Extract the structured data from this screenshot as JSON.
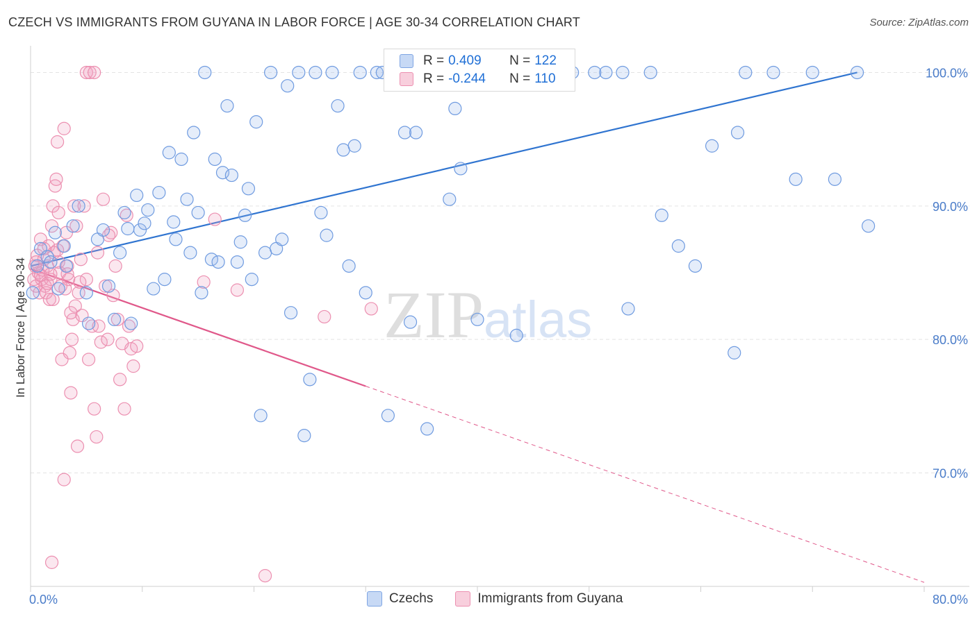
{
  "header": {
    "title": "CZECH VS IMMIGRANTS FROM GUYANA IN LABOR FORCE | AGE 30-34 CORRELATION CHART",
    "source": "Source: ZipAtlas.com"
  },
  "watermark": {
    "zip": "ZIP",
    "atlas": "atlas"
  },
  "legend_top": {
    "czechs": {
      "r_label": "R =",
      "r_value": "0.409",
      "n_label": "N =",
      "n_value": "122"
    },
    "guyana": {
      "r_label": "R =",
      "r_value": "-0.244",
      "n_label": "N =",
      "n_value": "110"
    }
  },
  "legend_bottom": {
    "czechs": "Czechs",
    "guyana": "Immigrants from Guyana"
  },
  "colors": {
    "czechs": "#6f9be0",
    "czechs_line": "#2f74d0",
    "guyana": "#ec8fb0",
    "guyana_line": "#e0588a",
    "axis_label": "#4a7cc9"
  },
  "chart_data": {
    "type": "scatter",
    "title": "CZECH VS IMMIGRANTS FROM GUYANA IN LABOR FORCE | AGE 30-34 CORRELATION CHART",
    "xlabel": "",
    "ylabel": "In Labor Force | Age 30-34",
    "xlim": [
      0,
      80
    ],
    "ylim": [
      61.5,
      102
    ],
    "x_tick_labels": [
      "0.0%",
      "80.0%"
    ],
    "y_ticks": [
      70,
      80,
      90,
      100
    ],
    "y_tick_labels": [
      "70.0%",
      "80.0%",
      "90.0%",
      "100.0%"
    ],
    "series": [
      {
        "name": "Czechs",
        "R": 0.409,
        "N": 122,
        "trend": {
          "x": [
            0,
            74
          ],
          "y": [
            85.5,
            100.0
          ]
        },
        "points": [
          [
            0.2,
            83.5
          ],
          [
            0.6,
            85.5
          ],
          [
            0.9,
            86.8
          ],
          [
            1.5,
            86.2
          ],
          [
            1.8,
            85.8
          ],
          [
            2.2,
            88.0
          ],
          [
            2.5,
            83.8
          ],
          [
            3.0,
            87.0
          ],
          [
            3.2,
            85.5
          ],
          [
            3.8,
            88.5
          ],
          [
            4.3,
            90.0
          ],
          [
            5.0,
            83.5
          ],
          [
            5.2,
            81.2
          ],
          [
            6.0,
            87.5
          ],
          [
            6.5,
            88.2
          ],
          [
            7.0,
            84.0
          ],
          [
            7.5,
            81.5
          ],
          [
            8.0,
            86.5
          ],
          [
            8.4,
            89.5
          ],
          [
            8.7,
            88.3
          ],
          [
            9.0,
            81.2
          ],
          [
            9.5,
            90.8
          ],
          [
            9.8,
            88.2
          ],
          [
            10.2,
            88.7
          ],
          [
            10.5,
            89.7
          ],
          [
            11.0,
            83.8
          ],
          [
            11.5,
            91.0
          ],
          [
            12.0,
            84.5
          ],
          [
            12.4,
            94.0
          ],
          [
            12.8,
            88.8
          ],
          [
            13.0,
            87.5
          ],
          [
            13.5,
            93.5
          ],
          [
            14.0,
            90.5
          ],
          [
            14.3,
            86.5
          ],
          [
            14.6,
            95.5
          ],
          [
            15.0,
            89.5
          ],
          [
            15.3,
            83.5
          ],
          [
            15.6,
            100.0
          ],
          [
            16.2,
            86.0
          ],
          [
            16.5,
            93.5
          ],
          [
            16.8,
            85.8
          ],
          [
            17.2,
            92.5
          ],
          [
            17.6,
            97.5
          ],
          [
            18.0,
            92.3
          ],
          [
            18.5,
            85.8
          ],
          [
            18.8,
            87.3
          ],
          [
            19.2,
            89.3
          ],
          [
            19.5,
            91.3
          ],
          [
            19.8,
            84.5
          ],
          [
            20.2,
            96.3
          ],
          [
            20.6,
            74.3
          ],
          [
            21.0,
            86.5
          ],
          [
            21.5,
            100.0
          ],
          [
            22.0,
            86.8
          ],
          [
            22.5,
            87.5
          ],
          [
            23.0,
            99.0
          ],
          [
            23.3,
            82.0
          ],
          [
            24.0,
            100.0
          ],
          [
            24.5,
            72.8
          ],
          [
            25.0,
            77.0
          ],
          [
            25.5,
            100.0
          ],
          [
            26.0,
            89.5
          ],
          [
            26.5,
            87.8
          ],
          [
            27.0,
            100.0
          ],
          [
            27.5,
            97.5
          ],
          [
            28.0,
            94.2
          ],
          [
            28.5,
            85.5
          ],
          [
            29.0,
            94.5
          ],
          [
            29.5,
            100.0
          ],
          [
            30.0,
            83.5
          ],
          [
            31.0,
            100.0
          ],
          [
            31.5,
            100.0
          ],
          [
            32.0,
            74.3
          ],
          [
            33.0,
            100.0
          ],
          [
            33.5,
            95.5
          ],
          [
            34.0,
            81.3
          ],
          [
            34.5,
            95.5
          ],
          [
            35.5,
            73.3
          ],
          [
            36.0,
            100.0
          ],
          [
            36.8,
            100.0
          ],
          [
            37.5,
            90.5
          ],
          [
            38.0,
            97.3
          ],
          [
            38.5,
            92.8
          ],
          [
            40.0,
            81.5
          ],
          [
            41.5,
            100.0
          ],
          [
            43.5,
            80.3
          ],
          [
            44.0,
            100.0
          ],
          [
            45.0,
            100.0
          ],
          [
            47.0,
            100.0
          ],
          [
            48.5,
            100.0
          ],
          [
            50.5,
            100.0
          ],
          [
            51.5,
            100.0
          ],
          [
            53.0,
            100.0
          ],
          [
            53.5,
            82.3
          ],
          [
            55.5,
            100.0
          ],
          [
            56.5,
            89.3
          ],
          [
            58.0,
            87.0
          ],
          [
            59.5,
            85.5
          ],
          [
            61.0,
            94.5
          ],
          [
            63.0,
            79.0
          ],
          [
            63.3,
            95.5
          ],
          [
            64.0,
            100.0
          ],
          [
            66.5,
            100.0
          ],
          [
            68.5,
            92.0
          ],
          [
            70.0,
            100.0
          ],
          [
            72.0,
            92.0
          ],
          [
            74.0,
            100.0
          ],
          [
            75.0,
            88.5
          ]
        ]
      },
      {
        "name": "Immigrants from Guyana",
        "R": -0.244,
        "N": 110,
        "trend": {
          "x": [
            0,
            30
          ],
          "y": [
            85.3,
            76.5
          ]
        },
        "trend_extension": {
          "x": [
            30,
            80
          ],
          "y": [
            76.5,
            61.8
          ]
        },
        "points": [
          [
            0.3,
            84.5
          ],
          [
            0.4,
            85.5
          ],
          [
            0.5,
            84.0
          ],
          [
            0.6,
            86.3
          ],
          [
            0.7,
            85.0
          ],
          [
            0.8,
            83.5
          ],
          [
            0.9,
            87.5
          ],
          [
            1.0,
            84.5
          ],
          [
            1.1,
            85.2
          ],
          [
            1.2,
            86.0
          ],
          [
            1.3,
            84.0
          ],
          [
            1.4,
            83.5
          ],
          [
            1.5,
            85.5
          ],
          [
            1.6,
            87.0
          ],
          [
            1.7,
            83.0
          ],
          [
            1.8,
            84.5
          ],
          [
            1.9,
            88.5
          ],
          [
            2.0,
            90.0
          ],
          [
            2.1,
            86.5
          ],
          [
            2.2,
            91.5
          ],
          [
            2.3,
            92.0
          ],
          [
            2.4,
            94.8
          ],
          [
            2.5,
            89.5
          ],
          [
            2.6,
            85.0
          ],
          [
            2.7,
            84.0
          ],
          [
            2.8,
            78.5
          ],
          [
            2.9,
            87.0
          ],
          [
            3.0,
            95.8
          ],
          [
            3.1,
            83.8
          ],
          [
            3.2,
            88.0
          ],
          [
            3.3,
            85.5
          ],
          [
            3.4,
            84.5
          ],
          [
            3.5,
            79.0
          ],
          [
            3.6,
            76.0
          ],
          [
            3.7,
            80.0
          ],
          [
            3.8,
            81.5
          ],
          [
            3.9,
            90.0
          ],
          [
            4.0,
            82.5
          ],
          [
            4.1,
            88.5
          ],
          [
            4.2,
            72.0
          ],
          [
            4.3,
            83.5
          ],
          [
            4.5,
            86.0
          ],
          [
            4.8,
            90.0
          ],
          [
            5.0,
            84.5
          ],
          [
            5.2,
            78.5
          ],
          [
            5.5,
            81.0
          ],
          [
            5.7,
            74.8
          ],
          [
            5.9,
            72.7
          ],
          [
            6.1,
            81.0
          ],
          [
            6.3,
            79.8
          ],
          [
            6.5,
            90.5
          ],
          [
            6.7,
            84.0
          ],
          [
            6.9,
            80.0
          ],
          [
            7.2,
            88.0
          ],
          [
            7.4,
            83.3
          ],
          [
            7.6,
            85.5
          ],
          [
            7.8,
            81.5
          ],
          [
            8.0,
            77.0
          ],
          [
            8.2,
            79.7
          ],
          [
            8.4,
            74.8
          ],
          [
            8.6,
            89.3
          ],
          [
            8.8,
            81.0
          ],
          [
            9.0,
            79.3
          ],
          [
            9.2,
            78.0
          ],
          [
            9.5,
            79.5
          ],
          [
            3.0,
            69.5
          ],
          [
            1.9,
            63.3
          ],
          [
            5.0,
            100.0
          ],
          [
            5.3,
            100.0
          ],
          [
            5.7,
            100.0
          ],
          [
            15.5,
            84.3
          ],
          [
            16.5,
            89.0
          ],
          [
            18.5,
            83.7
          ],
          [
            21.0,
            62.3
          ],
          [
            26.3,
            81.7
          ],
          [
            30.5,
            82.3
          ],
          [
            0.5,
            85.8
          ],
          [
            0.9,
            84.8
          ],
          [
            1.2,
            86.8
          ],
          [
            1.5,
            84.2
          ],
          [
            2.0,
            83.0
          ],
          [
            2.5,
            85.8
          ],
          [
            3.3,
            84.9
          ],
          [
            4.4,
            84.3
          ],
          [
            6.0,
            86.5
          ],
          [
            7.0,
            87.8
          ],
          [
            3.6,
            82.0
          ],
          [
            4.6,
            81.8
          ],
          [
            1.8,
            84.9
          ],
          [
            2.4,
            86.7
          ]
        ]
      }
    ]
  }
}
